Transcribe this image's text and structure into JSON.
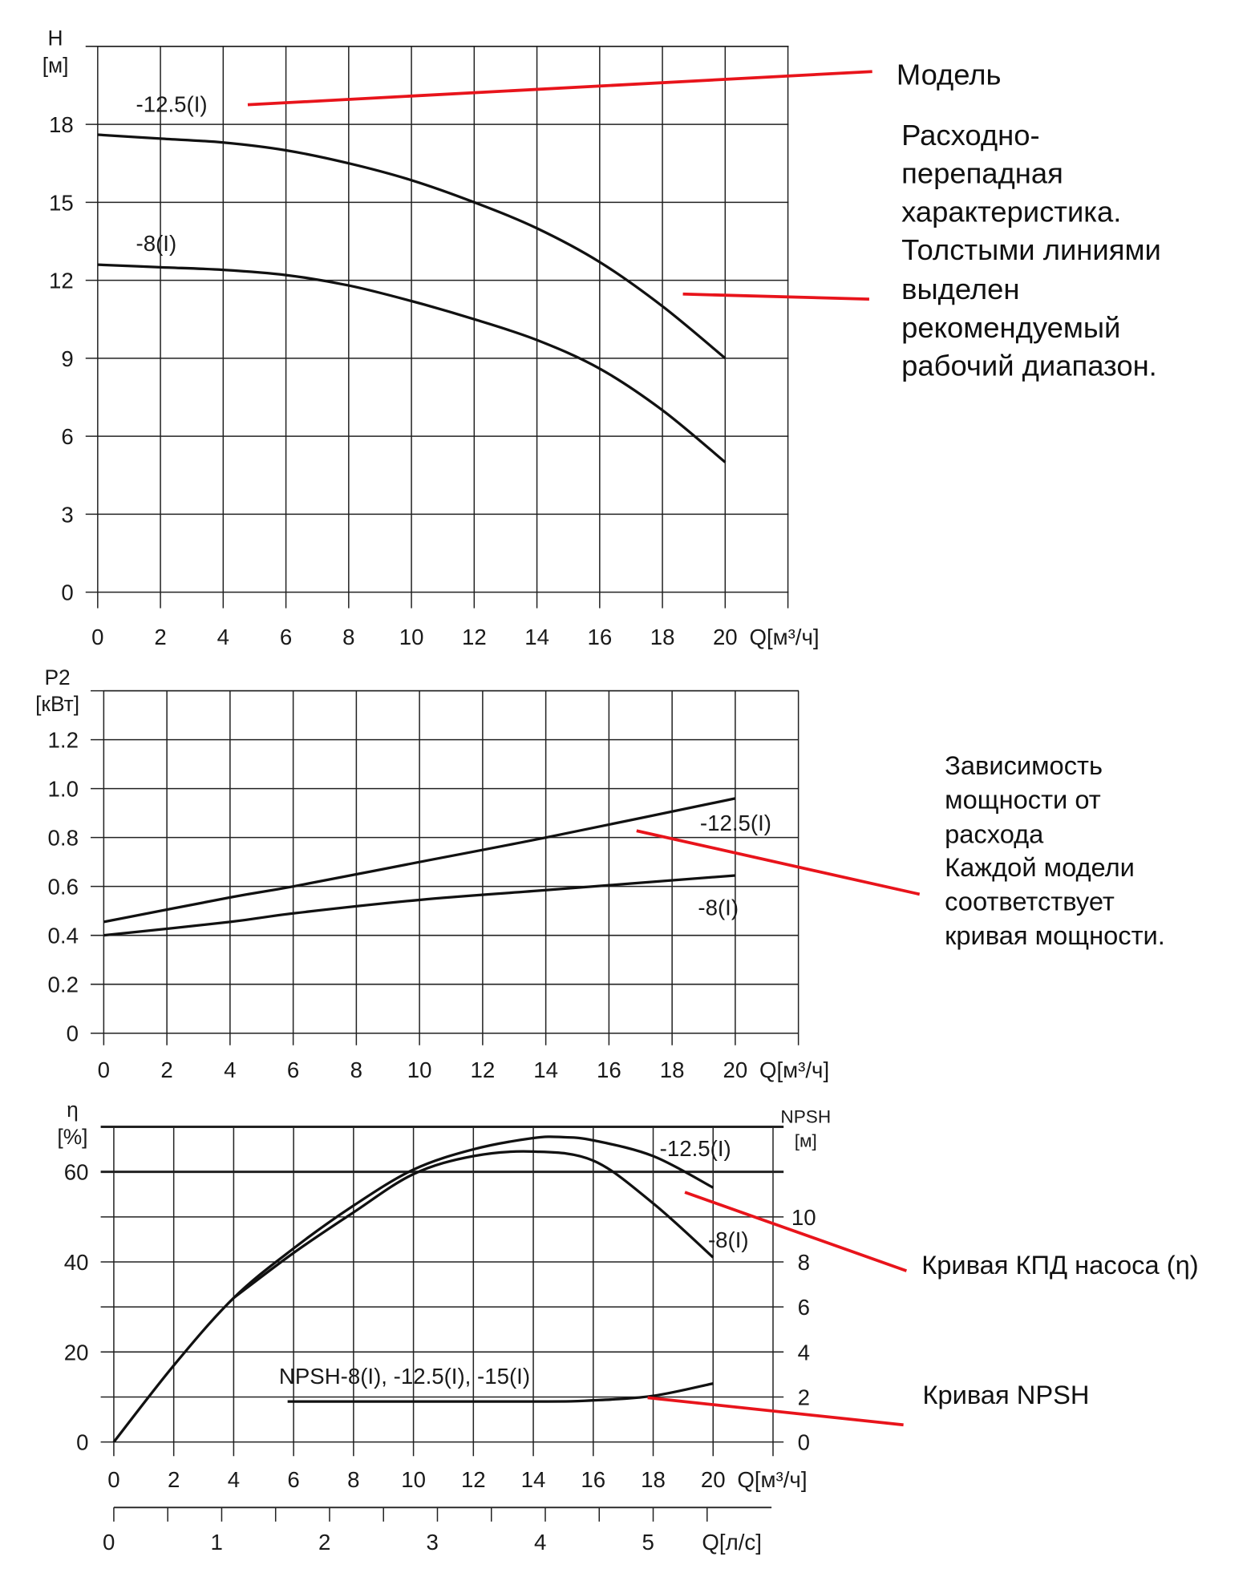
{
  "colors": {
    "curve": "#111111",
    "grid": "#222222",
    "leader": "#e8141b"
  },
  "annotations": {
    "model": "Модель",
    "head_curve": [
      "Расходно-",
      "перепадная",
      "характеристика.",
      "Толстыми линиями",
      "выделен",
      "рекомендуемый",
      "рабочий диапазон."
    ],
    "power_curve": [
      "Зависимость",
      "мощности от",
      "расхода",
      "Каждой модели",
      "соответствует",
      "кривая мощности."
    ],
    "efficiency_curve": "Кривая КПД насоса (η)",
    "npsh_curve": "Кривая NPSH"
  },
  "chart_data": [
    {
      "type": "line",
      "ylabel": [
        "H",
        "[м]"
      ],
      "xlabel": "Q[м³/ч]",
      "xlim": [
        0,
        22
      ],
      "ylim": [
        0,
        21
      ],
      "xticks": [
        "0",
        "2",
        "4",
        "6",
        "8",
        "10",
        "12",
        "14",
        "16",
        "18",
        "20"
      ],
      "yticks": [
        "0",
        "3",
        "6",
        "9",
        "12",
        "15",
        "18"
      ],
      "grid": true,
      "series": [
        {
          "name": "-12.5(I)",
          "x": [
            0,
            2,
            4,
            6,
            8,
            10,
            12,
            14,
            16,
            18,
            20
          ],
          "y": [
            17.6,
            17.45,
            17.3,
            17.0,
            16.5,
            15.85,
            15.0,
            14.0,
            12.7,
            11.0,
            9.0
          ]
        },
        {
          "name": "-8(I)",
          "x": [
            0,
            2,
            4,
            6,
            8,
            10,
            12,
            14,
            16,
            18,
            20
          ],
          "y": [
            12.6,
            12.5,
            12.4,
            12.2,
            11.8,
            11.2,
            10.5,
            9.7,
            8.6,
            7.0,
            5.0
          ]
        }
      ]
    },
    {
      "type": "line",
      "ylabel": [
        "P2",
        "[кВт]"
      ],
      "xlabel": "Q[м³/ч]",
      "xlim": [
        0,
        22
      ],
      "ylim": [
        0,
        1.4
      ],
      "xticks": [
        "0",
        "2",
        "4",
        "6",
        "8",
        "10",
        "12",
        "14",
        "16",
        "18",
        "20"
      ],
      "yticks": [
        "0",
        "0.2",
        "0.4",
        "0.6",
        "0.8",
        "1.0",
        "1.2"
      ],
      "grid": true,
      "series": [
        {
          "name": "-12.5(I)",
          "x": [
            0,
            4,
            6,
            10,
            14,
            20
          ],
          "y": [
            0.455,
            0.555,
            0.6,
            0.7,
            0.8,
            0.96
          ]
        },
        {
          "name": "-8(I)",
          "x": [
            0,
            4,
            6,
            10,
            14,
            20
          ],
          "y": [
            0.4,
            0.455,
            0.49,
            0.545,
            0.585,
            0.645
          ]
        }
      ]
    },
    {
      "type": "line",
      "ylabel": [
        "η",
        "[%]"
      ],
      "y2label": [
        "NPSH",
        "[м]"
      ],
      "xlabel": "Q[м³/ч]",
      "x2label": "Q[л/с]",
      "xlim": [
        0,
        22
      ],
      "ylim": [
        0,
        70
      ],
      "y2lim": [
        0,
        14
      ],
      "xticks": [
        "0",
        "2",
        "4",
        "6",
        "8",
        "10",
        "12",
        "14",
        "16",
        "18",
        "20"
      ],
      "yticks": [
        "0",
        "20",
        "40",
        "60"
      ],
      "y2ticks": [
        "0",
        "2",
        "4",
        "6",
        "8",
        "10"
      ],
      "x2ticks": [
        "0",
        "1",
        "2",
        "3",
        "4",
        "5"
      ],
      "grid": true,
      "series": [
        {
          "name": "-12.5(I)",
          "x": [
            0,
            2,
            4,
            6,
            8,
            10,
            12,
            14,
            15,
            16,
            18,
            20
          ],
          "y": [
            0,
            17,
            32,
            43,
            52.5,
            60.5,
            65,
            67.5,
            67.7,
            67,
            63.5,
            56.5
          ]
        },
        {
          "name": "-8(I)",
          "x": [
            4,
            6,
            8,
            10,
            12,
            14,
            16,
            18,
            20
          ],
          "y": [
            32,
            42,
            51,
            59.5,
            63.5,
            64.5,
            62.5,
            53,
            41
          ]
        },
        {
          "name": "NPSH-8(I), -12.5(I), -15(I)",
          "axis": "y2",
          "x": [
            5.8,
            14,
            16,
            18,
            20
          ],
          "y": [
            1.8,
            1.8,
            1.85,
            2.05,
            2.6
          ]
        }
      ]
    }
  ]
}
